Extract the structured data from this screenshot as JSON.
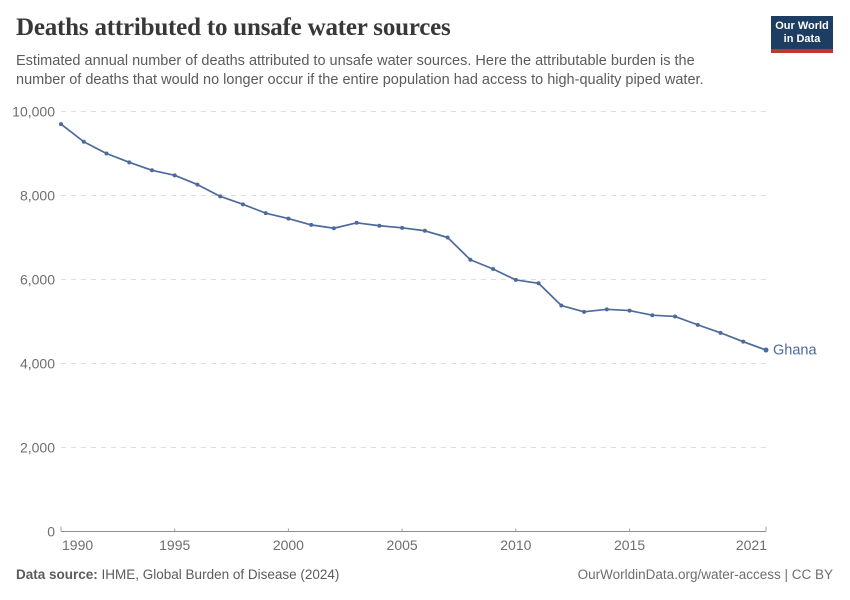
{
  "header": {
    "title": "Deaths attributed to unsafe water sources",
    "subtitle_line1": "Estimated annual number of deaths attributed to unsafe water sources. Here the attributable burden is the",
    "subtitle_line2": "number of deaths that would no longer occur if the entire population had access to high-quality piped water."
  },
  "logo": {
    "line1": "Our World",
    "line2": "in Data",
    "bg_color": "#1d3d63",
    "bar_color": "#c0362c"
  },
  "chart_data": {
    "type": "line",
    "title": "Deaths attributed to unsafe water sources",
    "xlabel": "",
    "ylabel": "",
    "x": [
      1990,
      1991,
      1992,
      1993,
      1994,
      1995,
      1996,
      1997,
      1998,
      1999,
      2000,
      2001,
      2002,
      2003,
      2004,
      2005,
      2006,
      2007,
      2008,
      2009,
      2010,
      2011,
      2012,
      2013,
      2014,
      2015,
      2016,
      2017,
      2018,
      2019,
      2020,
      2021
    ],
    "series": [
      {
        "name": "Ghana",
        "color": "#4C6A9C",
        "values": [
          9700,
          9280,
          9000,
          8790,
          8600,
          8480,
          8260,
          7980,
          7790,
          7580,
          7450,
          7300,
          7220,
          7350,
          7280,
          7230,
          7160,
          7000,
          6470,
          6250,
          5990,
          5910,
          5380,
          5230,
          5290,
          5260,
          5150,
          5120,
          4920,
          4730,
          4520,
          4320
        ]
      }
    ],
    "ylim": [
      0,
      10000
    ],
    "xlim": [
      1990,
      2021
    ],
    "grid": "horizontal-dashed",
    "legend_position": "end-of-line-label",
    "yticks": [
      {
        "value": 0,
        "label": "0"
      },
      {
        "value": 2000,
        "label": "2,000"
      },
      {
        "value": 4000,
        "label": "4,000"
      },
      {
        "value": 6000,
        "label": "6,000"
      },
      {
        "value": 8000,
        "label": "8,000"
      },
      {
        "value": 10000,
        "label": "10,000"
      }
    ],
    "xticks": [
      {
        "value": 1990,
        "label": "1990"
      },
      {
        "value": 1995,
        "label": "1995"
      },
      {
        "value": 2000,
        "label": "2000"
      },
      {
        "value": 2005,
        "label": "2005"
      },
      {
        "value": 2010,
        "label": "2010"
      },
      {
        "value": 2015,
        "label": "2015"
      },
      {
        "value": 2021,
        "label": "2021"
      }
    ],
    "colors": {
      "gridline": "#dedede",
      "axis": "#8f8f8f",
      "tick": "#a3a3a3",
      "tick_label": "#6e6e6e",
      "line": "#4C6A9C"
    }
  },
  "footer": {
    "source_label": "Data source:",
    "source_value": " IHME, Global Burden of Disease (2024)",
    "link": "OurWorldinData.org/water-access | CC BY"
  }
}
